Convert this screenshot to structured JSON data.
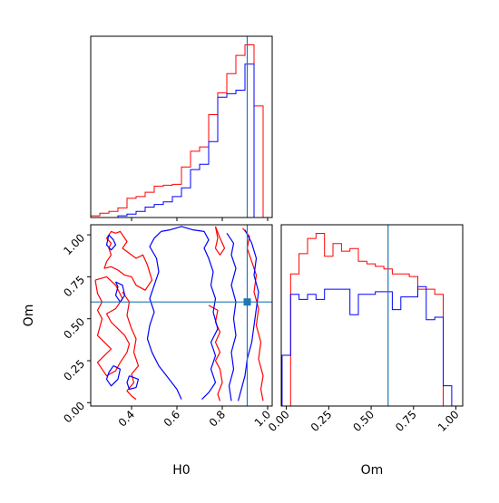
{
  "truth": {
    "H0": 0.91,
    "Om": 0.6,
    "color": "#1f77b4"
  },
  "colors": {
    "red_series": "#ff0000",
    "blue_series": "#0000ff",
    "truth_line": "#1f77b4"
  },
  "chart_data": [
    {
      "id": "h0-marginal",
      "type": "histogram",
      "title": "",
      "xlabel": "",
      "ylabel": "",
      "xlim": [
        0.22,
        1.02
      ],
      "x_ticks": [
        0.4,
        0.6,
        0.8,
        1.0
      ],
      "show_tick_labels": false,
      "bin_edges": [
        0.22,
        0.26,
        0.3,
        0.34,
        0.38,
        0.42,
        0.46,
        0.5,
        0.54,
        0.58,
        0.62,
        0.66,
        0.7,
        0.74,
        0.78,
        0.82,
        0.86,
        0.9,
        0.94,
        0.98,
        1.02
      ],
      "series": [
        {
          "color": "red",
          "values": [
            0.02,
            0.05,
            0.07,
            0.11,
            0.22,
            0.24,
            0.29,
            0.36,
            0.37,
            0.38,
            0.58,
            0.76,
            0.81,
            1.18,
            1.43,
            1.65,
            1.86,
            1.98,
            1.28,
            0.0
          ]
        },
        {
          "color": "blue",
          "values": [
            0.0,
            0.0,
            0.0,
            0.02,
            0.04,
            0.07,
            0.12,
            0.15,
            0.18,
            0.24,
            0.34,
            0.55,
            0.61,
            0.87,
            1.38,
            1.42,
            1.46,
            1.76,
            0.0,
            0.0
          ]
        }
      ],
      "vline": 0.91
    },
    {
      "id": "om-marginal",
      "type": "histogram",
      "title": "",
      "xlabel": "Om",
      "ylabel": "",
      "xlim": [
        -0.03,
        1.04
      ],
      "x_ticks": [
        0.0,
        0.25,
        0.5,
        0.75,
        1.0
      ],
      "x_tick_labels": [
        "0.00",
        "0.25",
        "0.50",
        "0.75",
        "1.00"
      ],
      "bin_edges": [
        -0.025,
        0.025,
        0.075,
        0.125,
        0.175,
        0.225,
        0.275,
        0.325,
        0.375,
        0.425,
        0.475,
        0.525,
        0.575,
        0.625,
        0.675,
        0.725,
        0.775,
        0.825,
        0.875,
        0.925,
        0.975,
        1.025
      ],
      "series": [
        {
          "color": "red",
          "values": [
            0.0,
            0.52,
            0.6,
            0.66,
            0.68,
            0.59,
            0.64,
            0.61,
            0.62,
            0.57,
            0.56,
            0.55,
            0.54,
            0.52,
            0.52,
            0.51,
            0.46,
            0.46,
            0.44,
            0.0,
            0.0
          ]
        },
        {
          "color": "blue",
          "values": [
            0.2,
            0.44,
            0.42,
            0.44,
            0.42,
            0.46,
            0.46,
            0.46,
            0.36,
            0.44,
            0.44,
            0.45,
            0.45,
            0.38,
            0.43,
            0.43,
            0.47,
            0.34,
            0.35,
            0.08,
            0.0
          ]
        }
      ],
      "vline": 0.6
    },
    {
      "id": "joint",
      "type": "contour",
      "title": "",
      "xlabel": "H0",
      "ylabel": "Om",
      "xlim": [
        0.22,
        1.02
      ],
      "ylim": [
        -0.02,
        1.06
      ],
      "x_ticks": [
        0.4,
        0.6,
        0.8,
        1.0
      ],
      "x_tick_labels": [
        "0.4",
        "0.6",
        "0.8",
        "1.0"
      ],
      "y_ticks": [
        0.0,
        0.25,
        0.5,
        0.75,
        1.0
      ],
      "y_tick_labels": [
        "0.00",
        "0.25",
        "0.50",
        "0.75",
        "1.00"
      ],
      "truth_marker": {
        "H0": 0.91,
        "Om": 0.6
      },
      "contours": [
        {
          "color": "red",
          "points": [
            [
              0.33,
              1.01
            ],
            [
              0.35,
              1.02
            ],
            [
              0.38,
              0.96
            ],
            [
              0.36,
              0.92
            ],
            [
              0.39,
              0.89
            ],
            [
              0.42,
              0.86
            ],
            [
              0.45,
              0.88
            ],
            [
              0.47,
              0.82
            ],
            [
              0.49,
              0.73
            ],
            [
              0.46,
              0.67
            ],
            [
              0.42,
              0.7
            ],
            [
              0.4,
              0.75
            ],
            [
              0.37,
              0.76
            ],
            [
              0.34,
              0.79
            ],
            [
              0.31,
              0.81
            ],
            [
              0.28,
              0.8
            ],
            [
              0.29,
              0.84
            ],
            [
              0.31,
              0.88
            ],
            [
              0.3,
              0.92
            ],
            [
              0.31,
              0.95
            ],
            [
              0.29,
              0.98
            ],
            [
              0.31,
              1.02
            ],
            [
              0.33,
              1.01
            ]
          ]
        },
        {
          "color": "red",
          "points": [
            [
              0.24,
              0.73
            ],
            [
              0.29,
              0.75
            ],
            [
              0.33,
              0.7
            ],
            [
              0.36,
              0.62
            ],
            [
              0.33,
              0.56
            ],
            [
              0.29,
              0.53
            ],
            [
              0.31,
              0.48
            ],
            [
              0.34,
              0.44
            ],
            [
              0.37,
              0.4
            ],
            [
              0.39,
              0.35
            ],
            [
              0.38,
              0.3
            ],
            [
              0.35,
              0.24
            ],
            [
              0.33,
              0.19
            ],
            [
              0.29,
              0.16
            ],
            [
              0.27,
              0.2
            ],
            [
              0.25,
              0.24
            ],
            [
              0.28,
              0.28
            ],
            [
              0.31,
              0.32
            ],
            [
              0.28,
              0.36
            ],
            [
              0.25,
              0.4
            ],
            [
              0.26,
              0.45
            ],
            [
              0.27,
              0.5
            ],
            [
              0.25,
              0.55
            ],
            [
              0.27,
              0.6
            ],
            [
              0.25,
              0.65
            ],
            [
              0.24,
              0.73
            ]
          ]
        },
        {
          "color": "red",
          "points": [
            [
              0.36,
              0.66
            ],
            [
              0.39,
              0.6
            ],
            [
              0.38,
              0.52
            ],
            [
              0.4,
              0.44
            ],
            [
              0.42,
              0.38
            ],
            [
              0.41,
              0.3
            ],
            [
              0.43,
              0.22
            ],
            [
              0.4,
              0.17
            ],
            [
              0.41,
              0.12
            ],
            [
              0.38,
              0.07
            ],
            [
              0.4,
              0.04
            ],
            [
              0.42,
              0.02
            ]
          ]
        },
        {
          "color": "red",
          "points": [
            [
              0.89,
              1.04
            ],
            [
              0.92,
              0.99
            ],
            [
              0.91,
              0.92
            ],
            [
              0.93,
              0.84
            ],
            [
              0.95,
              0.76
            ],
            [
              0.94,
              0.66
            ],
            [
              0.96,
              0.56
            ],
            [
              0.95,
              0.46
            ],
            [
              0.97,
              0.36
            ],
            [
              0.96,
              0.26
            ],
            [
              0.98,
              0.16
            ],
            [
              0.97,
              0.08
            ],
            [
              0.98,
              0.01
            ]
          ]
        },
        {
          "color": "red",
          "points": [
            [
              0.74,
              0.58
            ],
            [
              0.78,
              0.55
            ],
            [
              0.77,
              0.48
            ],
            [
              0.79,
              0.42
            ],
            [
              0.77,
              0.36
            ],
            [
              0.79,
              0.3
            ],
            [
              0.77,
              0.25
            ],
            [
              0.79,
              0.2
            ],
            [
              0.8,
              0.12
            ],
            [
              0.78,
              0.05
            ],
            [
              0.79,
              0.01
            ]
          ]
        },
        {
          "color": "red",
          "points": [
            [
              0.77,
              1.05
            ],
            [
              0.79,
              0.98
            ],
            [
              0.81,
              0.92
            ],
            [
              0.79,
              0.88
            ],
            [
              0.77,
              0.92
            ],
            [
              0.78,
              0.98
            ],
            [
              0.77,
              1.05
            ]
          ]
        },
        {
          "color": "blue",
          "points": [
            [
              0.53,
              1.02
            ],
            [
              0.57,
              1.03
            ],
            [
              0.62,
              1.05
            ],
            [
              0.67,
              1.03
            ],
            [
              0.72,
              1.02
            ],
            [
              0.74,
              0.97
            ],
            [
              0.72,
              0.92
            ],
            [
              0.74,
              0.86
            ],
            [
              0.76,
              0.78
            ],
            [
              0.75,
              0.7
            ],
            [
              0.77,
              0.62
            ],
            [
              0.76,
              0.54
            ],
            [
              0.78,
              0.44
            ],
            [
              0.75,
              0.36
            ],
            [
              0.77,
              0.28
            ],
            [
              0.75,
              0.2
            ],
            [
              0.77,
              0.12
            ],
            [
              0.74,
              0.06
            ],
            [
              0.71,
              0.02
            ]
          ]
        },
        {
          "color": "blue",
          "points": [
            [
              0.53,
              1.02
            ],
            [
              0.5,
              0.98
            ],
            [
              0.48,
              0.93
            ],
            [
              0.51,
              0.86
            ],
            [
              0.52,
              0.78
            ],
            [
              0.5,
              0.7
            ],
            [
              0.48,
              0.62
            ],
            [
              0.5,
              0.54
            ],
            [
              0.48,
              0.46
            ],
            [
              0.47,
              0.38
            ],
            [
              0.49,
              0.3
            ],
            [
              0.52,
              0.22
            ],
            [
              0.56,
              0.15
            ],
            [
              0.6,
              0.08
            ],
            [
              0.62,
              0.02
            ]
          ]
        },
        {
          "color": "blue",
          "points": [
            [
              0.82,
              1.01
            ],
            [
              0.85,
              0.95
            ],
            [
              0.84,
              0.88
            ],
            [
              0.86,
              0.8
            ],
            [
              0.84,
              0.7
            ],
            [
              0.86,
              0.6
            ],
            [
              0.85,
              0.5
            ],
            [
              0.86,
              0.4
            ],
            [
              0.84,
              0.3
            ],
            [
              0.85,
              0.2
            ],
            [
              0.83,
              0.1
            ],
            [
              0.84,
              0.01
            ]
          ]
        },
        {
          "color": "blue",
          "points": [
            [
              0.9,
              1.03
            ],
            [
              0.93,
              0.95
            ],
            [
              0.95,
              0.86
            ],
            [
              0.94,
              0.76
            ],
            [
              0.96,
              0.66
            ],
            [
              0.95,
              0.56
            ],
            [
              0.94,
              0.46
            ],
            [
              0.93,
              0.36
            ],
            [
              0.91,
              0.26
            ],
            [
              0.9,
              0.16
            ],
            [
              0.88,
              0.06
            ],
            [
              0.87,
              0.01
            ]
          ]
        },
        {
          "color": "blue",
          "points": [
            [
              0.33,
              0.72
            ],
            [
              0.36,
              0.7
            ],
            [
              0.37,
              0.64
            ],
            [
              0.35,
              0.6
            ],
            [
              0.33,
              0.64
            ],
            [
              0.34,
              0.69
            ],
            [
              0.33,
              0.72
            ]
          ]
        },
        {
          "color": "blue",
          "points": [
            [
              0.32,
              0.22
            ],
            [
              0.35,
              0.2
            ],
            [
              0.34,
              0.14
            ],
            [
              0.31,
              0.1
            ],
            [
              0.29,
              0.14
            ],
            [
              0.3,
              0.18
            ],
            [
              0.32,
              0.22
            ]
          ]
        },
        {
          "color": "blue",
          "points": [
            [
              0.39,
              0.16
            ],
            [
              0.43,
              0.14
            ],
            [
              0.42,
              0.09
            ],
            [
              0.39,
              0.08
            ],
            [
              0.38,
              0.12
            ],
            [
              0.39,
              0.16
            ]
          ]
        },
        {
          "color": "blue",
          "points": [
            [
              0.3,
              1.0
            ],
            [
              0.32,
              0.97
            ],
            [
              0.33,
              0.94
            ],
            [
              0.31,
              0.91
            ],
            [
              0.29,
              0.94
            ],
            [
              0.3,
              1.0
            ]
          ]
        }
      ]
    }
  ]
}
